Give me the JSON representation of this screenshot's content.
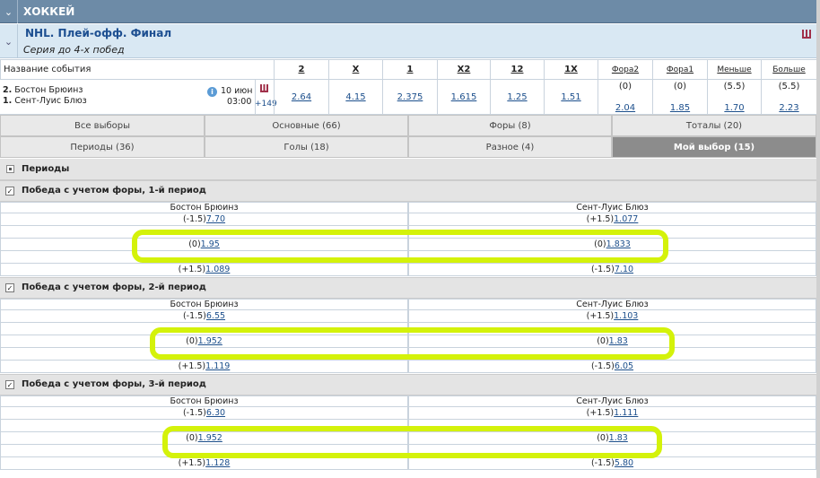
{
  "sport": "ХОККЕЙ",
  "league": {
    "title": "NHL. Плей-офф. Финал",
    "subtitle": "Серия до 4-х побед"
  },
  "table": {
    "headers": [
      "Название события",
      "2",
      "X",
      "1",
      "X2",
      "12",
      "1X",
      "Фора2",
      "Фора1",
      "Меньше",
      "Больше"
    ],
    "event": {
      "teams": [
        {
          "num": "2.",
          "name": "Бостон Брюинз"
        },
        {
          "num": "1.",
          "name": "Сент-Луис Блюз"
        }
      ],
      "date": "10 июн",
      "time": "03:00",
      "more": "+149",
      "odds": [
        "2.64",
        "4.15",
        "2.375",
        "1.615",
        "1.25",
        "1.51"
      ],
      "params": [
        {
          "param": "(0)",
          "odd": "2.04"
        },
        {
          "param": "(0)",
          "odd": "1.85"
        },
        {
          "param": "(5.5)",
          "odd": "1.70"
        },
        {
          "param": "(5.5)",
          "odd": "2.23"
        }
      ]
    }
  },
  "tabs": [
    [
      "Все выборы",
      "Основные (66)",
      "Форы (8)",
      "Тоталы (20)"
    ],
    [
      "Периоды (36)",
      "Голы (18)",
      "Разное (4)",
      "Мой выбор (15)"
    ]
  ],
  "group": "Периоды",
  "markets": [
    {
      "title": "Победа с учетом форы, 1-й период",
      "teams": [
        "Бостон Брюинз",
        "Сент-Луис Блюз"
      ],
      "rows": [
        {
          "left": {
            "param": "(-1.5)",
            "odd": "7.70"
          },
          "right": {
            "param": "(+1.5)",
            "odd": "1.077"
          }
        },
        {
          "left": {
            "param": "(0)",
            "odd": "1.95"
          },
          "right": {
            "param": "(0)",
            "odd": "1.833"
          }
        },
        {
          "left": {
            "param": "(+1.5)",
            "odd": "1.089"
          },
          "right": {
            "param": "(-1.5)",
            "odd": "7.10"
          }
        }
      ]
    },
    {
      "title": "Победа с учетом форы, 2-й период",
      "teams": [
        "Бостон Брюинз",
        "Сент-Луис Блюз"
      ],
      "rows": [
        {
          "left": {
            "param": "(-1.5)",
            "odd": "6.55"
          },
          "right": {
            "param": "(+1.5)",
            "odd": "1.103"
          }
        },
        {
          "left": {
            "param": "(0)",
            "odd": "1.952"
          },
          "right": {
            "param": "(0)",
            "odd": "1.83"
          }
        },
        {
          "left": {
            "param": "(+1.5)",
            "odd": "1.119"
          },
          "right": {
            "param": "(-1.5)",
            "odd": "6.05"
          }
        }
      ]
    },
    {
      "title": "Победа с учетом форы, 3-й период",
      "teams": [
        "Бостон Брюинз",
        "Сент-Луис Блюз"
      ],
      "rows": [
        {
          "left": {
            "param": "(-1.5)",
            "odd": "6.30"
          },
          "right": {
            "param": "(+1.5)",
            "odd": "1.111"
          }
        },
        {
          "left": {
            "param": "(0)",
            "odd": "1.952"
          },
          "right": {
            "param": "(0)",
            "odd": "1.83"
          }
        },
        {
          "left": {
            "param": "(+1.5)",
            "odd": "1.128"
          },
          "right": {
            "param": "(-1.5)",
            "odd": "5.80"
          }
        }
      ]
    }
  ]
}
